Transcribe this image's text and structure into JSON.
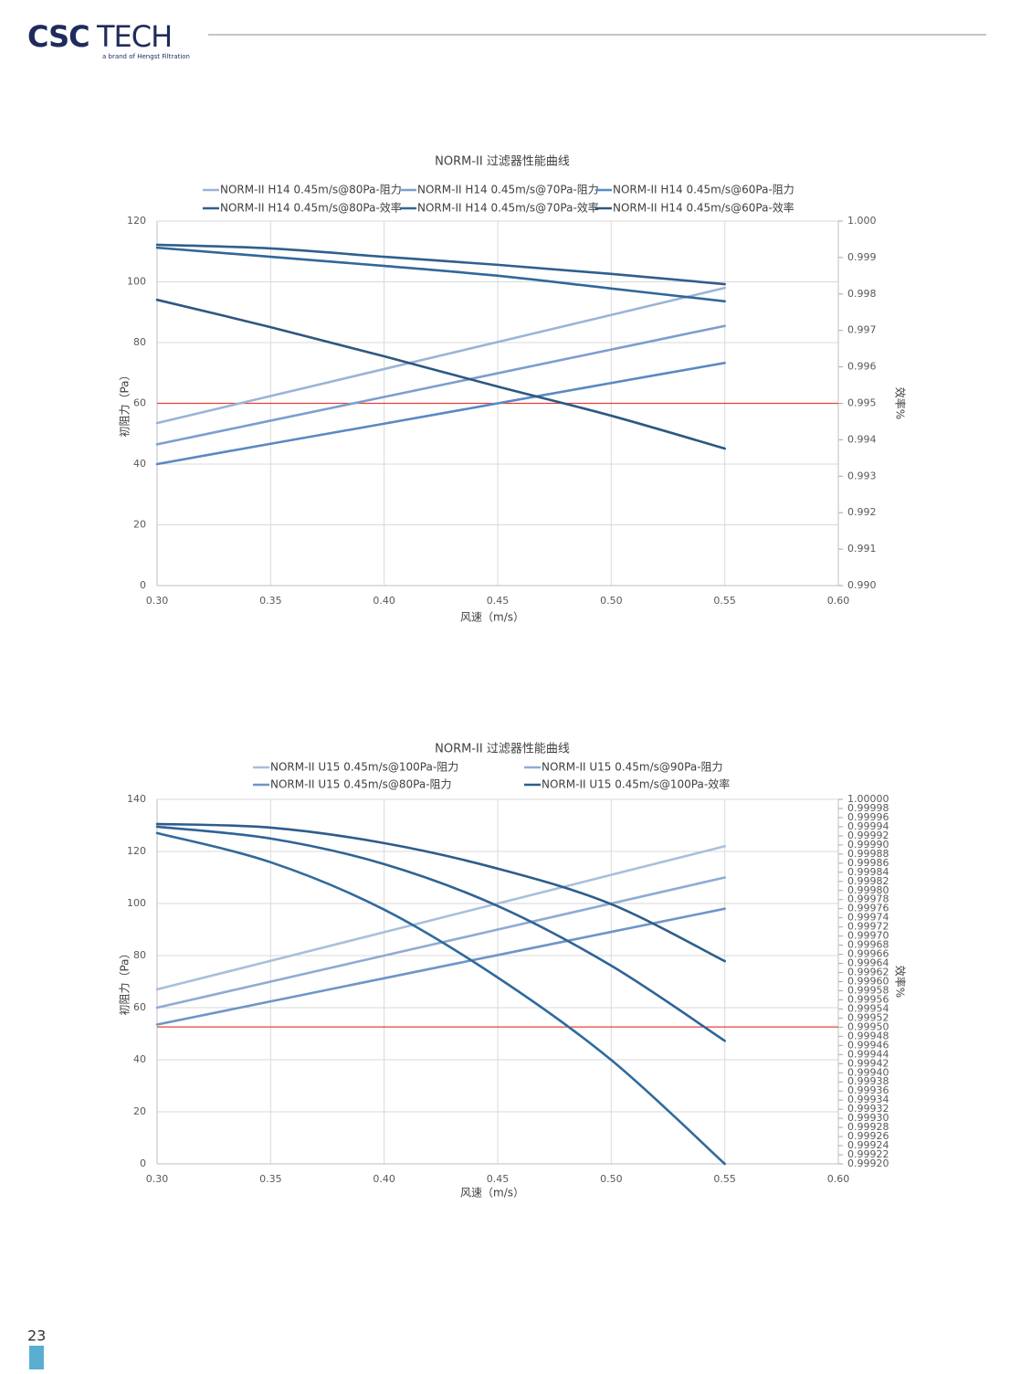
{
  "header": {
    "logo_bold": "CSC",
    "logo_light": "TECH",
    "tagline": "a brand of Hengst Filtration"
  },
  "page_number": "23",
  "chart_data": [
    {
      "type": "line",
      "title": "NORM-II 过滤器性能曲线",
      "x_label": "风速（m/s）",
      "y_label": "初阻力（Pa）",
      "y2_label": "效率%",
      "x": [
        0.3,
        0.35,
        0.4,
        0.45,
        0.5,
        0.55
      ],
      "xlim": [
        0.3,
        0.6
      ],
      "xticks": [
        {
          "value": 0.3,
          "label": "0.30"
        },
        0.35,
        {
          "value": 0.4,
          "label": "0.40"
        },
        0.45,
        {
          "value": 0.5,
          "label": "0.50"
        },
        0.55,
        {
          "value": 0.6,
          "label": "0.60"
        }
      ],
      "ylim": [
        0,
        120
      ],
      "yticks": [
        0,
        20,
        40,
        60,
        80,
        100,
        120
      ],
      "y2lim": [
        0.99,
        1
      ],
      "y2ticks": [
        {
          "value": 0.99,
          "label": "0.990"
        },
        0.991,
        0.992,
        0.993,
        0.994,
        0.995,
        0.996,
        0.997,
        0.998,
        0.999,
        {
          "value": 1,
          "label": "1.000"
        }
      ],
      "grid": true,
      "hline": {
        "value": 60,
        "color": "#e8413c"
      },
      "series": [
        {
          "name": "NORM-II H14 0.45m/s@80Pa-阻力",
          "color": "#9bb4d6",
          "values": [
            53.5,
            62.4,
            71.3,
            80.2,
            89.1,
            98
          ]
        },
        {
          "name": "NORM-II H14 0.45m/s@70Pa-阻力",
          "color": "#7d9ecd",
          "values": [
            46.5,
            54.3,
            62.1,
            69.9,
            77.7,
            85.5
          ]
        },
        {
          "name": "NORM-II H14 0.45m/s@60Pa-阻力",
          "color": "#5a89c2",
          "values": [
            40,
            46.7,
            53.3,
            60,
            66.7,
            73.3
          ]
        },
        {
          "name": "NORM-II H14 0.45m/s@80Pa-效率",
          "color": "#2f5f8d",
          "axis": "y2",
          "values": [
            0.99935,
            0.99925,
            0.99902,
            0.9988,
            0.99855,
            0.99827
          ]
        },
        {
          "name": "NORM-II H14 0.45m/s@70Pa-效率",
          "color": "#31679a",
          "axis": "y2",
          "values": [
            0.99927,
            0.99902,
            0.99877,
            0.9985,
            0.99815,
            0.9978
          ]
        },
        {
          "name": "NORM-II H14 0.45m/s@60Pa-效率",
          "color": "#2c5880",
          "axis": "y2",
          "values": [
            0.99784,
            0.99709,
            0.99629,
            0.99546,
            0.99466,
            0.99376
          ]
        }
      ]
    },
    {
      "type": "line",
      "title": "NORM-II 过滤器性能曲线",
      "x_label": "风速（m/s）",
      "y_label": "初阻力（Pa）",
      "y2_label": "效率%",
      "x": [
        0.3,
        0.35,
        0.4,
        0.45,
        0.5,
        0.55
      ],
      "xlim": [
        0.3,
        0.6
      ],
      "xticks": [
        {
          "value": 0.3,
          "label": "0.30"
        },
        0.35,
        {
          "value": 0.4,
          "label": "0.40"
        },
        0.45,
        {
          "value": 0.5,
          "label": "0.50"
        },
        0.55,
        {
          "value": 0.6,
          "label": "0.60"
        }
      ],
      "ylim": [
        0,
        140
      ],
      "yticks": [
        0,
        20,
        40,
        60,
        80,
        100,
        120,
        140
      ],
      "y2lim": [
        0.9992,
        1
      ],
      "y2ticks": [
        {
          "value": 0.9992,
          "label": "0.99920"
        },
        0.99922,
        0.99924,
        0.99926,
        0.99928,
        {
          "value": 0.9993,
          "label": "0.99930"
        },
        0.99932,
        0.99934,
        0.99936,
        0.99938,
        {
          "value": 0.9994,
          "label": "0.99940"
        },
        0.99942,
        0.99944,
        0.99946,
        0.99948,
        {
          "value": 0.9995,
          "label": "0.99950"
        },
        0.99952,
        0.99954,
        0.99956,
        0.99958,
        {
          "value": 0.9996,
          "label": "0.99960"
        },
        0.99962,
        0.99964,
        0.99966,
        0.99968,
        {
          "value": 0.9997,
          "label": "0.99970"
        },
        0.99972,
        0.99974,
        0.99976,
        0.99978,
        {
          "value": 0.9998,
          "label": "0.99980"
        },
        0.99982,
        0.99984,
        0.99986,
        0.99988,
        {
          "value": 0.9999,
          "label": "0.99990"
        },
        0.99992,
        0.99994,
        0.99996,
        0.99998,
        {
          "value": 1,
          "label": "1.00000"
        }
      ],
      "grid": true,
      "hline": {
        "value": 52.6,
        "color": "#e8413c"
      },
      "series": [
        {
          "name": "NORM-II U15 0.45m/s@100Pa-阻力",
          "color": "#a9bfdc",
          "values": [
            67,
            78,
            89,
            100,
            111,
            122
          ]
        },
        {
          "name": "NORM-II U15 0.45m/s@90Pa-阻力",
          "color": "#8eabd3",
          "values": [
            60,
            70,
            80,
            90,
            100,
            110
          ]
        },
        {
          "name": "NORM-II U15 0.45m/s@80Pa-阻力",
          "color": "#6f95c8",
          "values": [
            53.5,
            62.4,
            71.3,
            80.2,
            89.1,
            98
          ]
        },
        {
          "name": "NORM-II U15 0.45m/s@100Pa-效率",
          "color": "#2d5d8b",
          "axis": "y2",
          "values": [
            0.999946,
            0.999938,
            0.999904,
            0.999848,
            0.99977,
            0.999645
          ]
        },
        {
          "color": "#2f6396",
          "axis": "y2",
          "values": [
            0.99994,
            0.999914,
            0.999858,
            0.999766,
            0.999635,
            0.99947
          ]
        },
        {
          "color": "#306a9c",
          "axis": "y2",
          "values": [
            0.999926,
            0.999862,
            0.999758,
            0.999609,
            0.999428,
            0.9992
          ]
        }
      ]
    }
  ]
}
